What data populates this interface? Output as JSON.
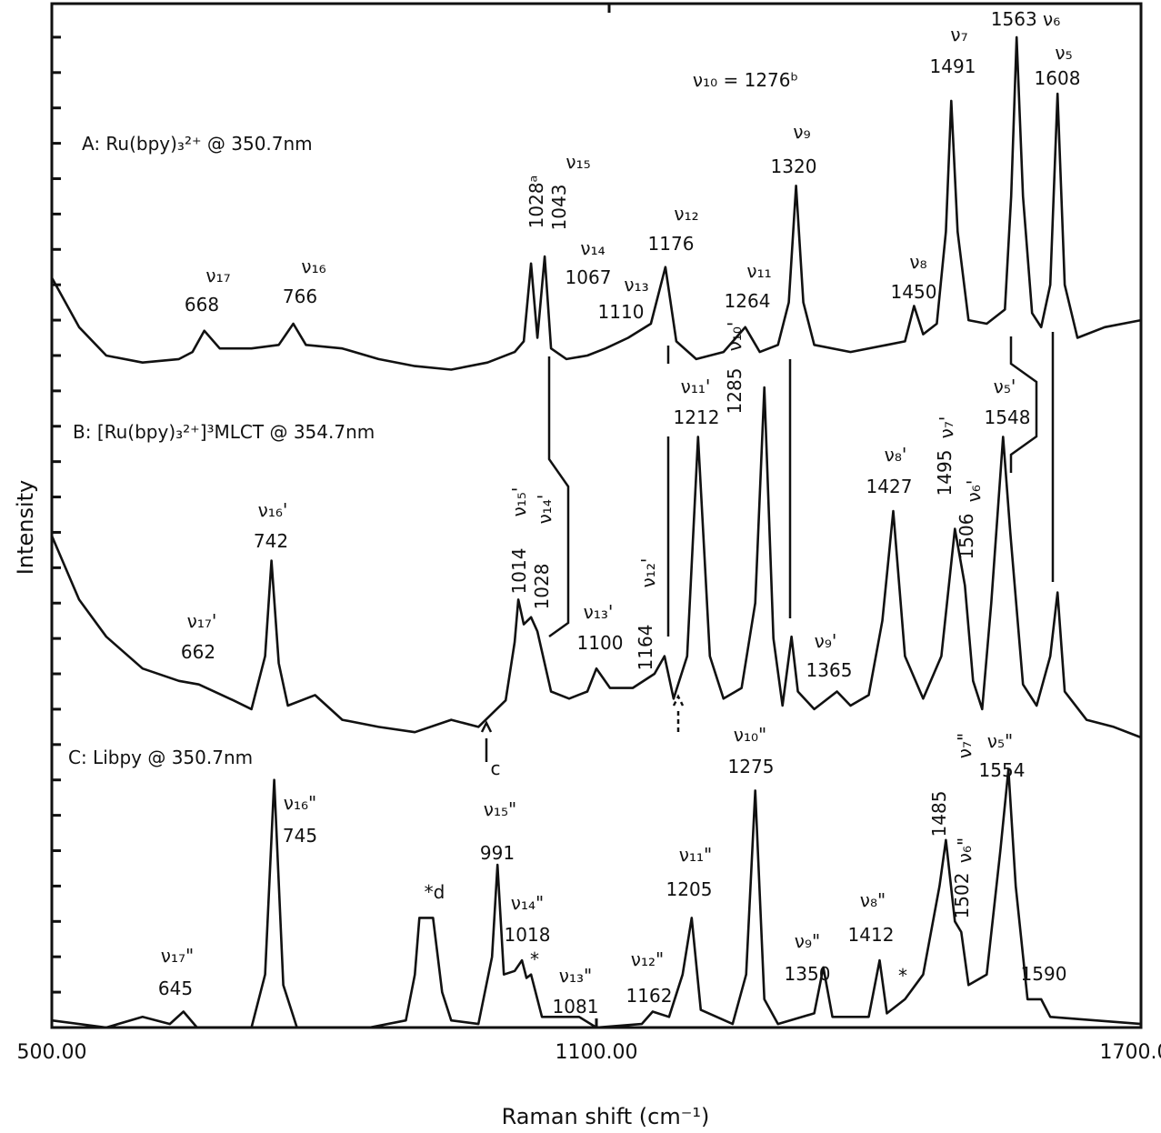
{
  "chart_data": {
    "type": "line",
    "x_label": "Raman shift (cm⁻¹)",
    "y_label": "Intensity",
    "xlim": [
      500,
      1700
    ],
    "xticks": [
      {
        "value": 500,
        "label": "500.00"
      },
      {
        "value": 1100,
        "label": "1100.00"
      },
      {
        "value": 1700,
        "label": "1700.00"
      }
    ],
    "ylim": [
      0,
      29
    ],
    "yticks": [
      1,
      2,
      3,
      4,
      5,
      6,
      7,
      8,
      9,
      10,
      11,
      12,
      13,
      14,
      15,
      16,
      17,
      18,
      19,
      20,
      21,
      22,
      23,
      24,
      25,
      26,
      27,
      28
    ],
    "ytick_labels": false,
    "series": [
      {
        "name": "A:  Ru(bpy)₃²⁺ @ 350.7nm",
        "color": "#111111",
        "x": [
          500,
          530,
          560,
          600,
          640,
          655,
          668,
          685,
          720,
          750,
          766,
          780,
          820,
          860,
          900,
          940,
          980,
          1010,
          1020,
          1028,
          1035,
          1043,
          1050,
          1067,
          1090,
          1110,
          1135,
          1160,
          1176,
          1188,
          1210,
          1240,
          1264,
          1280,
          1300,
          1312,
          1320,
          1328,
          1340,
          1380,
          1420,
          1440,
          1450,
          1460,
          1475,
          1485,
          1491,
          1498,
          1510,
          1530,
          1550,
          1557,
          1563,
          1570,
          1580,
          1590,
          1600,
          1608,
          1616,
          1630,
          1660,
          1700
        ],
        "values": [
          21.2,
          19.8,
          19.0,
          18.8,
          18.9,
          19.1,
          19.7,
          19.2,
          19.2,
          19.3,
          19.9,
          19.3,
          19.2,
          18.9,
          18.7,
          18.6,
          18.8,
          19.1,
          19.4,
          21.6,
          19.5,
          21.8,
          19.2,
          18.9,
          19.0,
          19.2,
          19.5,
          19.9,
          21.5,
          19.4,
          18.9,
          19.1,
          19.8,
          19.1,
          19.3,
          20.5,
          23.8,
          20.5,
          19.3,
          19.1,
          19.3,
          19.4,
          20.4,
          19.6,
          19.9,
          22.5,
          26.2,
          22.5,
          20.0,
          19.9,
          20.3,
          23.5,
          28.0,
          23.5,
          20.2,
          19.8,
          21.0,
          26.4,
          21.0,
          19.5,
          19.8,
          20.0
        ],
        "annotations": [
          "ν₁₇",
          "668",
          "ν₁₆",
          "766",
          "1028ᵃ",
          "1043",
          "ν₁₅",
          "ν₁₄",
          "1067",
          "ν₁₃",
          "1110",
          "ν₁₂",
          "1176",
          "ν₁₁",
          "1264",
          "ν₁₀ = 1276ᵇ",
          "ν₉",
          "1320",
          "ν₈",
          "1450",
          "ν₇",
          "1491",
          "1563 ν₆",
          "ν₅",
          "1608"
        ]
      },
      {
        "name": "B:  [Ru(bpy)₃²⁺]³MLCT @ 354.7nm",
        "color": "#111111",
        "x": [
          500,
          530,
          560,
          600,
          640,
          662,
          700,
          720,
          735,
          742,
          750,
          760,
          790,
          820,
          860,
          900,
          940,
          970,
          1000,
          1010,
          1014,
          1020,
          1028,
          1035,
          1050,
          1070,
          1090,
          1100,
          1115,
          1140,
          1164,
          1175,
          1185,
          1200,
          1212,
          1225,
          1240,
          1260,
          1275,
          1285,
          1295,
          1305,
          1315,
          1322,
          1340,
          1365,
          1380,
          1400,
          1415,
          1427,
          1440,
          1460,
          1480,
          1495,
          1506,
          1515,
          1525,
          1535,
          1548,
          1556,
          1570,
          1585,
          1600,
          1608,
          1616,
          1640,
          1670,
          1700
        ],
        "values": [
          13.9,
          12.1,
          11.05,
          10.15,
          9.8,
          9.7,
          9.25,
          9.0,
          10.5,
          13.2,
          10.3,
          9.1,
          9.4,
          8.7,
          8.5,
          8.35,
          8.7,
          8.5,
          9.25,
          10.9,
          12.1,
          11.4,
          11.6,
          11.2,
          9.5,
          9.3,
          9.5,
          10.15,
          9.6,
          9.6,
          10.0,
          10.5,
          9.3,
          10.5,
          16.7,
          10.5,
          9.3,
          9.6,
          12.0,
          18.1,
          11.0,
          9.1,
          11.05,
          9.5,
          9.0,
          9.5,
          9.1,
          9.4,
          11.5,
          14.6,
          10.5,
          9.3,
          10.5,
          14.1,
          12.5,
          9.8,
          9.0,
          12.0,
          16.7,
          14.0,
          9.7,
          9.1,
          10.5,
          12.3,
          9.5,
          8.7,
          8.5,
          8.2
        ],
        "annotations": [
          "ν₁₇'",
          "662",
          "ν₁₆'",
          "742",
          "1014",
          "1028",
          "ν₁₅'",
          "ν₁₄'",
          "ν₁₃'",
          "1100",
          "1164",
          "ν₁₂'",
          "ν₁₁'",
          "1212",
          "1285",
          "ν₁₀'",
          "ν₉'",
          "1365",
          "ν₈'",
          "1427",
          "1495",
          "ν₇'",
          "1506",
          "ν₆'",
          "ν₅'",
          "1548",
          "c"
        ]
      },
      {
        "name": "C:  Libpy @ 350.7nm",
        "color": "#111111",
        "x": [
          500,
          560,
          600,
          630,
          645,
          660,
          720,
          735,
          745,
          755,
          770,
          850,
          890,
          900,
          905,
          920,
          930,
          940,
          970,
          985,
          991,
          998,
          1010,
          1018,
          1023,
          1028,
          1040,
          1081,
          1100,
          1150,
          1162,
          1180,
          1195,
          1205,
          1215,
          1250,
          1265,
          1275,
          1285,
          1300,
          1340,
          1350,
          1360,
          1400,
          1412,
          1420,
          1440,
          1460,
          1478,
          1485,
          1495,
          1502,
          1510,
          1530,
          1545,
          1554,
          1562,
          1575,
          1590,
          1600,
          1650,
          1700
        ],
        "values": [
          0.2,
          0.0,
          0.3,
          0.1,
          0.45,
          0.0,
          0.0,
          1.5,
          7.0,
          1.2,
          0.0,
          0.0,
          0.2,
          1.5,
          3.1,
          3.1,
          1.0,
          0.2,
          0.1,
          2.0,
          4.6,
          1.5,
          1.6,
          1.9,
          1.4,
          1.5,
          0.3,
          0.3,
          0.0,
          0.1,
          0.45,
          0.3,
          1.5,
          3.1,
          0.5,
          0.1,
          1.5,
          6.7,
          0.8,
          0.1,
          0.4,
          1.7,
          0.3,
          0.3,
          1.9,
          0.4,
          0.8,
          1.5,
          4.0,
          5.3,
          3.0,
          2.7,
          1.2,
          1.5,
          5.0,
          7.3,
          4.0,
          0.8,
          0.8,
          0.3,
          0.2,
          0.1
        ],
        "annotations": [
          "ν₁₇\"",
          "645",
          "ν₁₆\"",
          "745",
          "*d",
          "ν₁₅\"",
          "991",
          "ν₁₄\"",
          "1018",
          "*",
          "ν₁₃\"",
          "1081",
          "ν₁₂\"",
          "1162",
          "ν₁₁\"",
          "1205",
          "ν₁₀\"",
          "1275",
          "ν₉\"",
          "1350",
          "ν₈\"",
          "1412",
          "*",
          "1485",
          "ν₇\"",
          "1502",
          "ν₆\"",
          "ν₅\"",
          "1554",
          "1590"
        ]
      }
    ]
  }
}
